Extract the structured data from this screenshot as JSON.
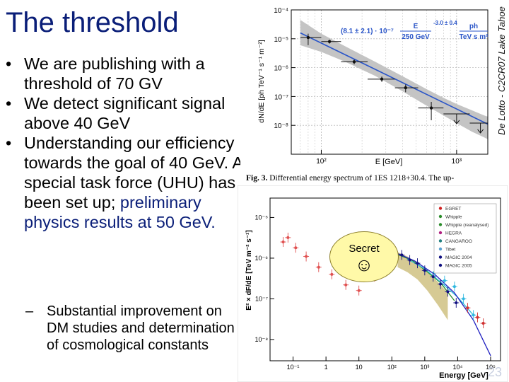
{
  "slide": {
    "title": "The threshold",
    "side_label": "De Lotto - C2CR07 Lake Tahoe",
    "bullets": [
      {
        "parts": [
          {
            "text": "We are publishing with a threshold of 70 GV",
            "color": "#000000"
          }
        ]
      },
      {
        "parts": [
          {
            "text": "We detect significant signal above 40 GeV",
            "color": "#000000"
          }
        ]
      },
      {
        "parts": [
          {
            "text": "Understanding our efficiency towards the goal of 40 GeV. A special task force (UHU) has been set up; ",
            "color": "#000000"
          },
          {
            "text": "preliminary physics results at 50 GeV.",
            "color": "#0a1e78"
          }
        ]
      }
    ],
    "sub_bullet": "Substantial improvement on DM studies and determination of cosmological constants",
    "figure_caption_bold": "Fig. 3.",
    "figure_caption": " Differential energy spectrum of 1ES 1218+30.4. The up-",
    "secret_label": "Secret",
    "smiley": "☺",
    "slide_number": "23"
  },
  "chart_data": [
    {
      "type": "scatter",
      "title": "",
      "xlabel": "E [GeV]",
      "ylabel": "dN/dE [ph TeV⁻¹ s⁻¹ m⁻²]",
      "xscale": "log",
      "yscale": "log",
      "xlim": [
        60,
        1700
      ],
      "ylim": [
        1e-09,
        0.0001
      ],
      "xticks": [
        {
          "v": 100,
          "label": "10²"
        },
        {
          "v": 1000,
          "label": "10³"
        }
      ],
      "yticks": [
        {
          "v": 0.0001,
          "label": "10⁻⁴"
        },
        {
          "v": 1e-05,
          "label": "10⁻⁵"
        },
        {
          "v": 1e-06,
          "label": "10⁻⁶"
        },
        {
          "v": 1e-07,
          "label": "10⁻⁷"
        },
        {
          "v": 1e-08,
          "label": "10⁻⁸"
        }
      ],
      "grid": true,
      "formula": {
        "prefix": "(8.1 ± 2.1) · 10⁻⁷",
        "fraction_num": "E",
        "fraction_den": "250 GeV",
        "exponent": "-3.0 ± 0.4",
        "unit_num": "ph",
        "unit_den": "TeV s m²"
      },
      "series": [
        {
          "kind": "points",
          "color": "#111111",
          "points": [
            {
              "x": 80,
              "y": 1.1e-05,
              "xlo": 70,
              "xhi": 100,
              "ylo": 6e-06,
              "yhi": 1.5e-05
            },
            {
              "x": 115,
              "y": 8e-06,
              "xlo": 100,
              "xhi": 140,
              "ylo": 6.8e-06,
              "yhi": 9.2e-06
            },
            {
              "x": 175,
              "y": 1.6e-06,
              "xlo": 140,
              "xhi": 220,
              "ylo": 1.3e-06,
              "yhi": 1.9e-06
            },
            {
              "x": 280,
              "y": 4e-07,
              "xlo": 220,
              "xhi": 350,
              "ylo": 3.2e-07,
              "yhi": 4.9e-07
            },
            {
              "x": 420,
              "y": 2e-07,
              "xlo": 350,
              "xhi": 520,
              "ylo": 1.4e-07,
              "yhi": 2.6e-07
            },
            {
              "x": 650,
              "y": 4e-08,
              "xlo": 520,
              "xhi": 800,
              "ylo": 1.5e-08,
              "yhi": 6.5e-08
            }
          ]
        },
        {
          "kind": "upper_limits",
          "color": "#111111",
          "points": [
            {
              "x": 1000,
              "y": 2.5e-08,
              "xlo": 800,
              "xhi": 1250
            },
            {
              "x": 1500,
              "y": 1.2e-08,
              "xlo": 1250,
              "xhi": 1700
            }
          ]
        },
        {
          "kind": "fit_line",
          "color": "#2a55c8",
          "x": [
            70,
            1700
          ],
          "y": [
            1.6e-05,
            1.1e-08
          ]
        },
        {
          "kind": "band",
          "color": "#c4c4c4",
          "x": [
            70,
            100,
            150,
            250,
            400,
            600,
            800,
            1000,
            1300,
            1600,
            1700
          ],
          "upper": [
            4.5e-05,
            1.5e-05,
            5.5e-06,
            1.6e-06,
            5e-07,
            1.8e-07,
            9e-08,
            5.5e-08,
            3.3e-08,
            2.2e-08,
            2e-08
          ],
          "lower": [
            6e-06,
            3.5e-06,
            1.6e-06,
            5.2e-07,
            1.5e-07,
            4.8e-08,
            2.2e-08,
            1.2e-08,
            6e-09,
            3.8e-09,
            3.3e-09
          ]
        }
      ]
    },
    {
      "type": "scatter",
      "title": "",
      "xlabel": "Energy [GeV]",
      "ylabel": "E² × dF/dE [TeV m⁻² s⁻¹]",
      "xscale": "log",
      "yscale": "log",
      "xlim": [
        0.02,
        200000
      ],
      "ylim": [
        3e-09,
        3e-05
      ],
      "xticks": [
        {
          "v": 0.1,
          "label": "10⁻¹"
        },
        {
          "v": 1,
          "label": "1"
        },
        {
          "v": 10,
          "label": "10"
        },
        {
          "v": 100,
          "label": "10²"
        },
        {
          "v": 1000,
          "label": "10³"
        },
        {
          "v": 10000,
          "label": "10⁴"
        },
        {
          "v": 100000,
          "label": "10⁵"
        }
      ],
      "yticks": [
        {
          "v": 1e-05,
          "label": "10⁻⁵"
        },
        {
          "v": 1e-06,
          "label": "10⁻⁶"
        },
        {
          "v": 1e-07,
          "label": "10⁻⁷"
        },
        {
          "v": 1e-08,
          "label": "10⁻⁸"
        }
      ],
      "grid": false,
      "legend_placement": "top-right",
      "legend": [
        {
          "label": "EGRET",
          "color": "#d02020"
        },
        {
          "label": "Whipple",
          "color": "#2a8c2a"
        },
        {
          "label": "Whipple (reanalysed)",
          "color": "#2a8c2a"
        },
        {
          "label": "HEGRA",
          "color": "#b02080"
        },
        {
          "label": "CANGAROO",
          "color": "#208080"
        },
        {
          "label": "Tibet",
          "color": "#5aa0d0"
        },
        {
          "label": "MAGIC 2004",
          "color": "#101080"
        },
        {
          "label": "MAGIC 2005",
          "color": "#101080"
        }
      ],
      "series": [
        {
          "kind": "points",
          "color": "#e05050",
          "points": [
            {
              "x": 0.05,
              "y": 2.5e-06
            },
            {
              "x": 0.07,
              "y": 3.2e-06
            },
            {
              "x": 0.12,
              "y": 1.8e-06
            },
            {
              "x": 0.25,
              "y": 1.1e-06
            },
            {
              "x": 0.6,
              "y": 6e-07
            },
            {
              "x": 1.5,
              "y": 4e-07
            },
            {
              "x": 4,
              "y": 2.2e-07
            },
            {
              "x": 10,
              "y": 1.6e-07
            },
            {
              "x": 30,
              "y": 3.5e-07
            }
          ]
        },
        {
          "kind": "band",
          "color": "#c8b870",
          "x": [
            150,
            300,
            600,
            1200,
            2500,
            5000
          ],
          "upper": [
            1.4e-06,
            1.1e-06,
            7.5e-07,
            4.8e-07,
            2.6e-07,
            1.4e-07
          ],
          "lower": [
            6e-07,
            4.5e-07,
            3e-07,
            1.6e-07,
            7e-08,
            3e-08
          ]
        },
        {
          "kind": "line",
          "color": "#2a8c2a",
          "x": [
            100,
            400,
            1000,
            3000,
            8000
          ],
          "y": [
            1.4e-06,
            9e-07,
            5.2e-07,
            2.5e-07,
            9e-08
          ]
        },
        {
          "kind": "line",
          "color": "#30c0d8",
          "x": [
            300,
            1000,
            3000,
            10000,
            30000
          ],
          "y": [
            9.5e-07,
            5.5e-07,
            2.6e-07,
            1.1e-07,
            4e-08
          ]
        },
        {
          "kind": "line",
          "color": "#2020c0",
          "x": [
            150,
            500,
            2000,
            8000,
            30000,
            100000
          ],
          "y": [
            1.3e-06,
            8.5e-07,
            4e-07,
            1.4e-07,
            3e-08,
            4e-09
          ]
        },
        {
          "kind": "points",
          "color": "#101080",
          "points": [
            {
              "x": 200,
              "y": 1.2e-06
            },
            {
              "x": 350,
              "y": 9e-07
            },
            {
              "x": 600,
              "y": 7.5e-07
            },
            {
              "x": 1000,
              "y": 5e-07
            },
            {
              "x": 1800,
              "y": 3.5e-07
            },
            {
              "x": 3000,
              "y": 2.3e-07
            },
            {
              "x": 5000,
              "y": 1.5e-07
            },
            {
              "x": 9000,
              "y": 8e-08
            }
          ]
        },
        {
          "kind": "points",
          "color": "#30b8e0",
          "points": [
            {
              "x": 2000,
              "y": 4.5e-07
            },
            {
              "x": 4000,
              "y": 2.8e-07
            },
            {
              "x": 8000,
              "y": 2e-07
            },
            {
              "x": 15000,
              "y": 1e-07
            },
            {
              "x": 30000,
              "y": 4e-08
            }
          ]
        },
        {
          "kind": "points",
          "color": "#d03030",
          "points": [
            {
              "x": 20000,
              "y": 6e-08
            },
            {
              "x": 40000,
              "y": 3.5e-08
            },
            {
              "x": 60000,
              "y": 2.5e-08
            }
          ]
        }
      ]
    }
  ]
}
